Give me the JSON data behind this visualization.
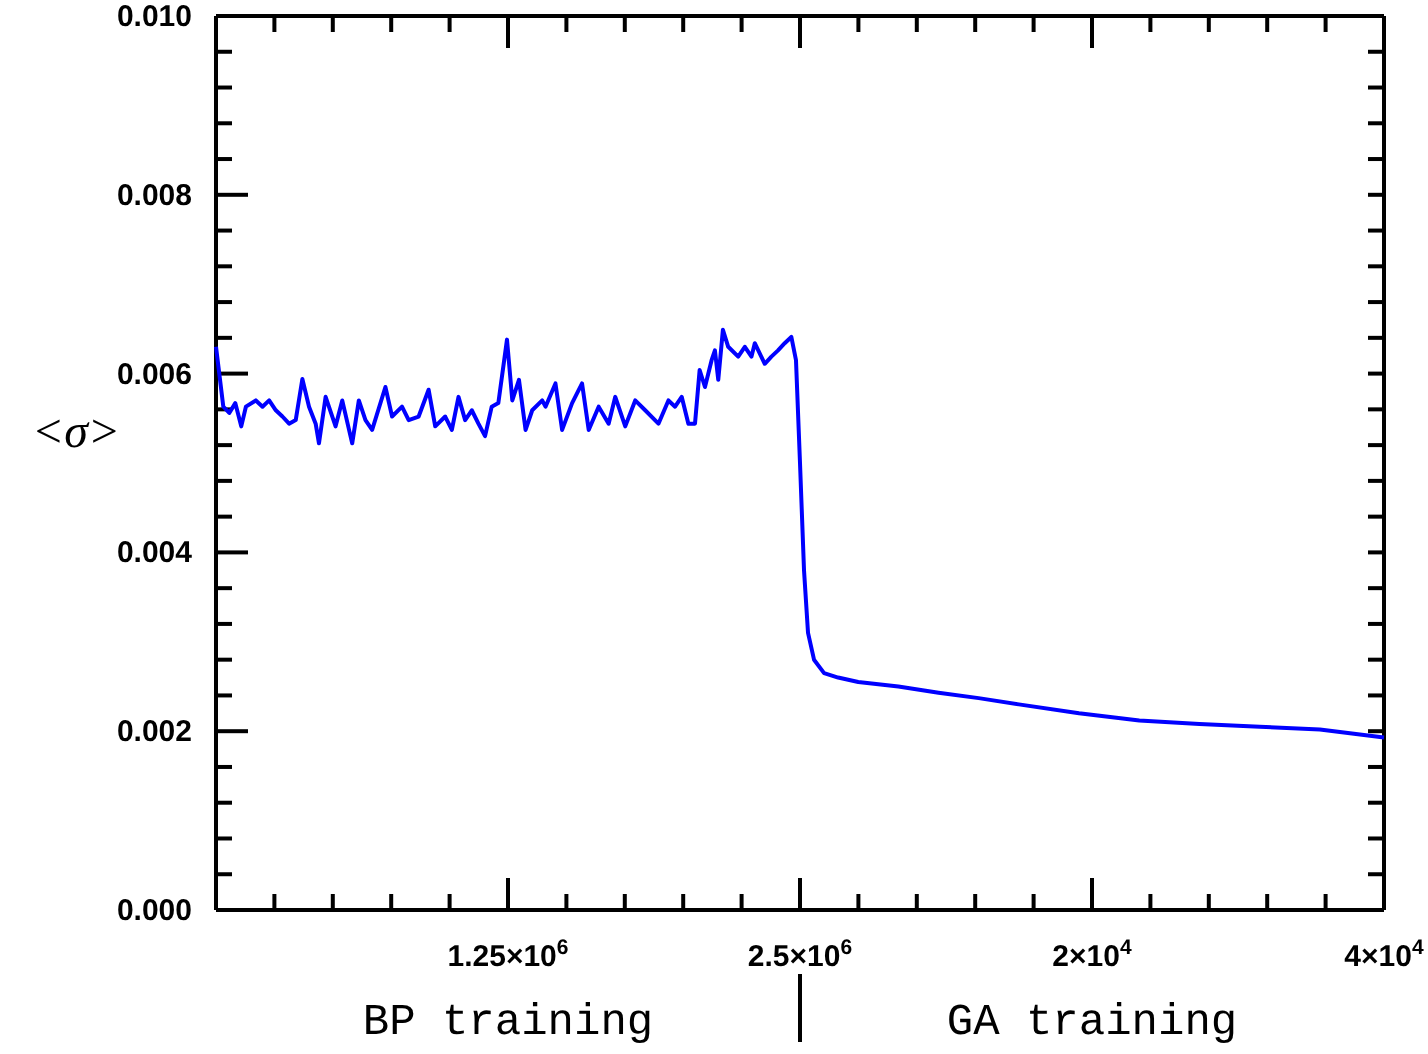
{
  "chart_data": [
    {
      "type": "line",
      "ylabel": "<σ>",
      "xlabel": "BP training",
      "xlim": [
        0,
        2500000
      ],
      "ylim": [
        0,
        0.01
      ],
      "xticks": [
        {
          "value": 250000,
          "label": null
        },
        {
          "value": 500000,
          "label": null
        },
        {
          "value": 750000,
          "label": null
        },
        {
          "value": 1000000,
          "label": null
        },
        {
          "value": 1250000,
          "label": "1.25×10$^{6}$"
        },
        {
          "value": 1500000,
          "label": null
        },
        {
          "value": 1750000,
          "label": null
        },
        {
          "value": 2000000,
          "label": null
        },
        {
          "value": 2250000,
          "label": null
        },
        {
          "value": 2500000,
          "label": "2.5×10$^{6}$"
        }
      ],
      "yticks": [
        {
          "value": 0,
          "label": "0.000"
        },
        {
          "value": 0.0004,
          "label": null
        },
        {
          "value": 0.0008,
          "label": null
        },
        {
          "value": 0.0012,
          "label": null
        },
        {
          "value": 0.0016,
          "label": null
        },
        {
          "value": 0.002,
          "label": "0.002"
        },
        {
          "value": 0.0024,
          "label": null
        },
        {
          "value": 0.0028,
          "label": null
        },
        {
          "value": 0.0032,
          "label": null
        },
        {
          "value": 0.0036,
          "label": null
        },
        {
          "value": 0.004,
          "label": "0.004"
        },
        {
          "value": 0.0044,
          "label": null
        },
        {
          "value": 0.0048,
          "label": null
        },
        {
          "value": 0.0052,
          "label": null
        },
        {
          "value": 0.0056,
          "label": null
        },
        {
          "value": 0.006,
          "label": "0.006"
        },
        {
          "value": 0.0064,
          "label": null
        },
        {
          "value": 0.0068,
          "label": null
        },
        {
          "value": 0.0072,
          "label": null
        },
        {
          "value": 0.0076,
          "label": null
        },
        {
          "value": 0.008,
          "label": "0.008"
        },
        {
          "value": 0.0084,
          "label": null
        },
        {
          "value": 0.0088,
          "label": null
        },
        {
          "value": 0.0092,
          "label": null
        },
        {
          "value": 0.0096,
          "label": null
        },
        {
          "value": 0.01,
          "label": "0.010"
        }
      ],
      "series": [
        {
          "color": "#0000ff",
          "x": [
            0,
            31300,
            56900,
            82500,
            108100,
            128000,
            170600,
            199100,
            227500,
            256000,
            284400,
            312900,
            341300,
            369700,
            398200,
            426600,
            440800,
            469300,
            511900,
            540400,
            583000,
            611500,
            639900,
            668400,
            725200,
            753700,
            796300,
            824800,
            867500,
            910100,
            938500,
            981200,
            1009600,
            1038100,
            1066500,
            1095000,
            1123400,
            1151800,
            1180300,
            1208700,
            1245700,
            1268400,
            1296900,
            1325300,
            1353700,
            1396400,
            1410600,
            1453200,
            1481700,
            1524400,
            1567000,
            1595500,
            1638100,
            1680800,
            1709200,
            1751900,
            1794600,
            1837200,
            1894100,
            1936700,
            1965200,
            1993600,
            2022100,
            2050500,
            2070400,
            2093200,
            2121600,
            2135800,
            2150100,
            2170000,
            2192700,
            2235400,
            2263800,
            2292300,
            2306500,
            2349100,
            2377600,
            2406000,
            2434500,
            2462900,
            2482800,
            2500000
          ],
          "values": [
            0.0063,
            0.00563,
            0.00556,
            0.00567,
            0.00541,
            0.00563,
            0.0057,
            0.00563,
            0.0057,
            0.00559,
            0.00552,
            0.00544,
            0.00548,
            0.00594,
            0.00563,
            0.00544,
            0.00522,
            0.00574,
            0.00541,
            0.0057,
            0.00522,
            0.0057,
            0.00548,
            0.00537,
            0.00585,
            0.00552,
            0.00563,
            0.00548,
            0.00552,
            0.00582,
            0.00541,
            0.00552,
            0.00537,
            0.00574,
            0.00548,
            0.00559,
            0.00544,
            0.0053,
            0.00563,
            0.00567,
            0.00638,
            0.0057,
            0.00593,
            0.00537,
            0.00559,
            0.0057,
            0.00563,
            0.00589,
            0.00537,
            0.00567,
            0.00589,
            0.00537,
            0.00563,
            0.00544,
            0.00574,
            0.00541,
            0.0057,
            0.00559,
            0.00544,
            0.0057,
            0.00563,
            0.00574,
            0.00544,
            0.00544,
            0.00604,
            0.00585,
            0.00615,
            0.00626,
            0.00593,
            0.00649,
            0.0063,
            0.00619,
            0.0063,
            0.00619,
            0.00634,
            0.00611,
            0.00619,
            0.00626,
            0.00634,
            0.00641,
            0.00615,
            0.005
          ]
        }
      ]
    },
    {
      "type": "line",
      "xlabel": "GA training",
      "xlim": [
        0,
        40000
      ],
      "ylim": [
        0,
        0.01
      ],
      "tick_labels": "x",
      "xticks": [
        {
          "value": 4000,
          "label": null
        },
        {
          "value": 8000,
          "label": null
        },
        {
          "value": 12000,
          "label": null
        },
        {
          "value": 16000,
          "label": null
        },
        {
          "value": 20000,
          "label": "2×10$^{4}$"
        },
        {
          "value": 24000,
          "label": null
        },
        {
          "value": 28000,
          "label": null
        },
        {
          "value": 32000,
          "label": null
        },
        {
          "value": 36000,
          "label": null
        },
        {
          "value": 40000,
          "label": "4×10$^{4}$"
        }
      ],
      "yticks": [
        {
          "value": 0,
          "label": null
        },
        {
          "value": 0.0004,
          "label": null
        },
        {
          "value": 0.0008,
          "label": null
        },
        {
          "value": 0.0012,
          "label": null
        },
        {
          "value": 0.0016,
          "label": null
        },
        {
          "value": 0.002,
          "label": null
        },
        {
          "value": 0.0024,
          "label": null
        },
        {
          "value": 0.0028,
          "label": null
        },
        {
          "value": 0.0032,
          "label": null
        },
        {
          "value": 0.0036,
          "label": null
        },
        {
          "value": 0.004,
          "label": null
        },
        {
          "value": 0.0044,
          "label": null
        },
        {
          "value": 0.0048,
          "label": null
        },
        {
          "value": 0.0052,
          "label": null
        },
        {
          "value": 0.0056,
          "label": null
        },
        {
          "value": 0.006,
          "label": null
        },
        {
          "value": 0.0064,
          "label": null
        },
        {
          "value": 0.0068,
          "label": null
        },
        {
          "value": 0.0072,
          "label": null
        },
        {
          "value": 0.0076,
          "label": null
        },
        {
          "value": 0.008,
          "label": null
        },
        {
          "value": 0.0084,
          "label": null
        },
        {
          "value": 0.0088,
          "label": null
        },
        {
          "value": 0.0092,
          "label": null
        },
        {
          "value": 0.0096,
          "label": null
        },
        {
          "value": 0.01,
          "label": null
        }
      ],
      "series": [
        {
          "color": "#0000ff",
          "x": [
            0,
            275,
            550,
            960,
            1650,
            2610,
            3990,
            6740,
            9490,
            12240,
            14990,
            19110,
            23240,
            27360,
            31490,
            35610,
            40000
          ],
          "values": [
            0.005,
            0.0038,
            0.0031,
            0.0028,
            0.00265,
            0.0026,
            0.00255,
            0.0025,
            0.00243,
            0.00237,
            0.0023,
            0.0022,
            0.00212,
            0.00208,
            0.00205,
            0.00202,
            0.00193
          ]
        }
      ]
    }
  ]
}
